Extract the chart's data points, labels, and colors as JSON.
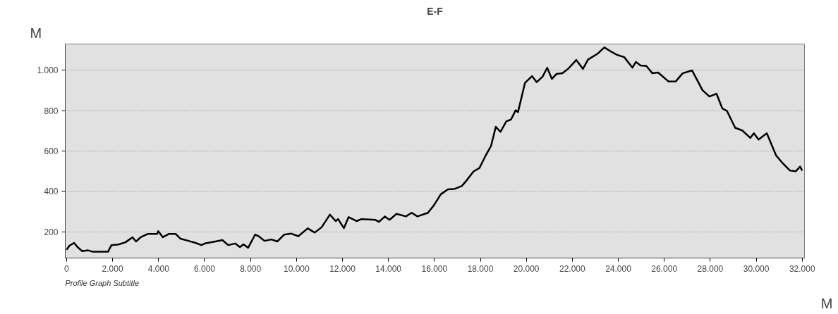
{
  "chart_data": {
    "type": "line",
    "title": "E-F",
    "subtitle": "Profile Graph Subtitle",
    "xlabel": "M",
    "ylabel": "M",
    "x": [
      0,
      120,
      323,
      476,
      680,
      933,
      1137,
      1799,
      1951,
      2256,
      2561,
      2866,
      3018,
      3222,
      3524,
      3933,
      3984,
      4186,
      4442,
      4747,
      4948,
      5305,
      5610,
      5863,
      6015,
      6473,
      6777,
      7031,
      7335,
      7540,
      7692,
      7896,
      8201,
      8354,
      8607,
      8912,
      9165,
      9470,
      9775,
      10079,
      10488,
      10793,
      11098,
      11453,
      11707,
      11809,
      12063,
      12268,
      12625,
      12827,
      13437,
      13589,
      13845,
      14047,
      14352,
      14760,
      15009,
      15263,
      15720,
      15976,
      16280,
      16585,
      16890,
      17195,
      17398,
      17703,
      17959,
      18213,
      18466,
      18670,
      18875,
      19128,
      19332,
      19535,
      19637,
      19942,
      20247,
      20449,
      20704,
      20907,
      21110,
      21314,
      21568,
      21817,
      22174,
      22459,
      22683,
      23088,
      23393,
      23647,
      23952,
      24256,
      24613,
      24765,
      24969,
      25223,
      25477,
      25732,
      26189,
      26494,
      26799,
      27210,
      27414,
      27662,
      27966,
      28271,
      28525,
      28729,
      29085,
      29390,
      29745,
      29898,
      30101,
      30460,
      30863,
      31116,
      31473,
      31727,
      31910,
      32000
    ],
    "series": [
      {
        "color": "#000000",
        "values": [
          111,
          131,
          145,
          124,
          104,
          108,
          101,
          101,
          134,
          137,
          148,
          173,
          152,
          173,
          189,
          189,
          203,
          173,
          189,
          189,
          166,
          155,
          145,
          134,
          142,
          152,
          159,
          134,
          142,
          124,
          138,
          121,
          186,
          178,
          155,
          162,
          152,
          186,
          191,
          178,
          217,
          196,
          223,
          285,
          253,
          263,
          218,
          273,
          253,
          263,
          259,
          249,
          276,
          259,
          289,
          276,
          294,
          276,
          294,
          331,
          386,
          410,
          413,
          427,
          454,
          499,
          516,
          574,
          626,
          720,
          695,
          747,
          756,
          802,
          793,
          938,
          971,
          941,
          968,
          1012,
          957,
          982,
          985,
          1007,
          1051,
          1007,
          1053,
          1081,
          1113,
          1095,
          1076,
          1065,
          1013,
          1041,
          1024,
          1021,
          985,
          989,
          944,
          944,
          985,
          999,
          955,
          901,
          870,
          884,
          811,
          798,
          715,
          702,
          665,
          688,
          657,
          688,
          578,
          544,
          503,
          500,
          523,
          503
        ]
      }
    ],
    "xlim": [
      -60,
      32100
    ],
    "ylim": [
      70,
      1130
    ],
    "xticks": [
      0,
      {
        "value": 2000,
        "label": "2.000"
      },
      {
        "value": 4000,
        "label": "4.000"
      },
      {
        "value": 6000,
        "label": "6.000"
      },
      {
        "value": 8000,
        "label": "8.000"
      },
      {
        "value": 10000,
        "label": "10.000"
      },
      {
        "value": 12000,
        "label": "12.000"
      },
      {
        "value": 14000,
        "label": "14.000"
      },
      {
        "value": 16000,
        "label": "16.000"
      },
      {
        "value": 18000,
        "label": "18.000"
      },
      {
        "value": 20000,
        "label": "20.000"
      },
      {
        "value": 22000,
        "label": "22.000"
      },
      {
        "value": 24000,
        "label": "24.000"
      },
      {
        "value": 26000,
        "label": "26.000"
      },
      {
        "value": 28000,
        "label": "28.000"
      },
      {
        "value": 30000,
        "label": "30.000"
      },
      {
        "value": 32000,
        "label": "32.000"
      }
    ],
    "yticks": [
      200,
      400,
      600,
      800,
      {
        "value": 1000,
        "label": "1.000"
      }
    ],
    "grid": "y",
    "marker": "none",
    "line_style": "solid"
  }
}
